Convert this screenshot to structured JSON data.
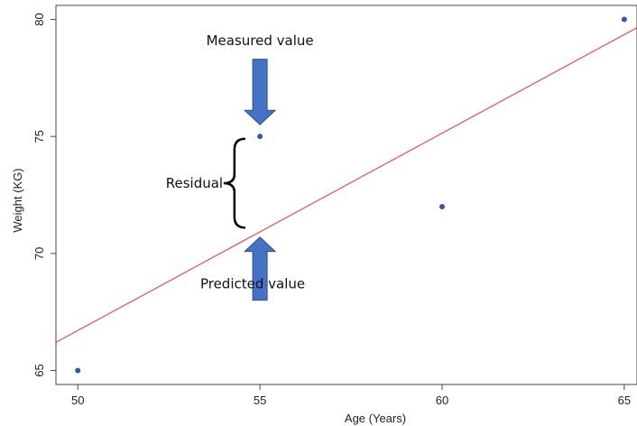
{
  "chart_data": {
    "type": "scatter",
    "title": "",
    "xlabel": "Age (Years)",
    "ylabel": "Weight (KG)",
    "xlim": [
      49.4,
      65.35
    ],
    "ylim": [
      64.4,
      80.6
    ],
    "xticks": [
      50,
      55,
      60,
      65
    ],
    "yticks": [
      65,
      70,
      75,
      80
    ],
    "grid": false,
    "series": [
      {
        "points": [
          {
            "x": 50,
            "y": 65
          },
          {
            "x": 55,
            "y": 75
          },
          {
            "x": 60,
            "y": 72
          },
          {
            "x": 65,
            "y": 80
          }
        ],
        "color": "#3a55a4"
      }
    ],
    "regression_line": {
      "color": "#ff2a2a",
      "x": [
        49.4,
        65.35
      ],
      "y": [
        66.2,
        79.65
      ]
    },
    "annotations": [
      {
        "text": "Measured value",
        "x": 55,
        "y": 78.9
      },
      {
        "text": "Residual",
        "x": 53.2,
        "y": 72.8
      },
      {
        "text": "Predicted value",
        "x": 54.8,
        "y": 68.5
      }
    ],
    "arrows": [
      {
        "direction": "down",
        "x": 55,
        "y_from": 78.3,
        "y_to": 75.5,
        "color": "#4472c4"
      },
      {
        "direction": "up",
        "x": 55,
        "y_from": 68.0,
        "y_to": 70.7,
        "color": "#4472c4"
      }
    ],
    "residual_brace": {
      "x": 54.3,
      "y_top": 74.9,
      "y_bottom": 71.1
    }
  }
}
